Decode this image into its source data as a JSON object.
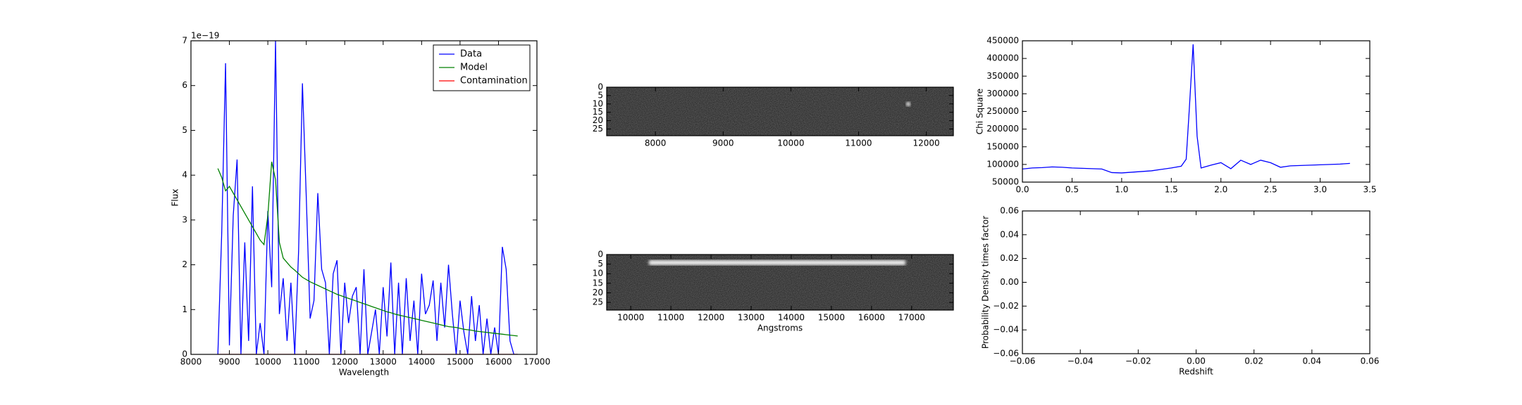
{
  "chart_data": [
    {
      "type": "line",
      "xlabel": "Wavelength",
      "ylabel": "Flux",
      "y_offset_label": "1e−19",
      "xlim": [
        8000,
        17000
      ],
      "xticks": [
        8000,
        9000,
        10000,
        11000,
        12000,
        13000,
        14000,
        15000,
        16000,
        17000
      ],
      "ylim": [
        0,
        7
      ],
      "yticks": [
        0,
        1,
        2,
        3,
        4,
        5,
        6,
        7
      ],
      "legend": "upper right",
      "x": [
        8700,
        8800,
        8900,
        9000,
        9100,
        9200,
        9300,
        9400,
        9500,
        9600,
        9700,
        9800,
        9900,
        10000,
        10100,
        10200,
        10300,
        10400,
        10500,
        10600,
        10700,
        10800,
        10900,
        11000,
        11100,
        11200,
        11300,
        11400,
        11500,
        11600,
        11700,
        11800,
        11900,
        12000,
        12100,
        12200,
        12300,
        12400,
        12500,
        12600,
        12700,
        12800,
        12900,
        13000,
        13100,
        13200,
        13300,
        13400,
        13500,
        13600,
        13700,
        13800,
        13900,
        14000,
        14100,
        14200,
        14300,
        14400,
        14500,
        14600,
        14700,
        14800,
        14900,
        15000,
        15100,
        15200,
        15300,
        15400,
        15500,
        15600,
        15700,
        15800,
        15900,
        16000,
        16100,
        16200,
        16300,
        16400,
        16500
      ],
      "series": [
        {
          "name": "Data",
          "color": "#0000ff",
          "values": [
            0,
            2.7,
            6.5,
            0.2,
            3.1,
            4.35,
            0,
            2.5,
            0.3,
            3.75,
            0,
            0.7,
            0,
            3.2,
            1.5,
            7.0,
            0.9,
            1.7,
            0.3,
            1.6,
            0,
            2.3,
            6.05,
            3.5,
            0.8,
            1.2,
            3.6,
            1.9,
            1.6,
            0,
            1.8,
            2.1,
            0,
            1.6,
            0.7,
            1.3,
            1.5,
            0,
            1.9,
            0,
            0.5,
            1.0,
            0,
            1.5,
            0.4,
            2.05,
            0,
            1.6,
            0,
            1.7,
            0.3,
            1.2,
            0,
            1.8,
            0.9,
            1.1,
            1.65,
            0.3,
            1.6,
            0.6,
            2.0,
            0.9,
            0,
            1.2,
            0.5,
            0,
            1.3,
            0.3,
            1.1,
            0,
            0.8,
            0,
            0.6,
            0,
            2.4,
            1.9,
            0.3,
            0,
            0
          ]
        },
        {
          "name": "Model",
          "color": "#008000",
          "values": [
            4.15,
            3.95,
            3.65,
            3.75,
            3.6,
            3.45,
            3.3,
            3.15,
            3.0,
            2.85,
            2.7,
            2.55,
            2.45,
            3.1,
            4.3,
            3.9,
            2.5,
            2.15,
            2.05,
            1.95,
            1.88,
            1.8,
            1.72,
            1.67,
            1.62,
            1.58,
            1.54,
            1.5,
            1.46,
            1.42,
            1.38,
            1.34,
            1.31,
            1.28,
            1.25,
            1.22,
            1.19,
            1.16,
            1.13,
            1.1,
            1.07,
            1.04,
            1.01,
            0.98,
            0.95,
            0.93,
            0.9,
            0.88,
            0.86,
            0.84,
            0.82,
            0.8,
            0.78,
            0.76,
            0.74,
            0.72,
            0.7,
            0.68,
            0.66,
            0.64,
            0.62,
            0.61,
            0.6,
            0.58,
            0.56,
            0.55,
            0.54,
            0.52,
            0.51,
            0.5,
            0.49,
            0.48,
            0.47,
            0.46,
            0.45,
            0.44,
            0.43,
            0.42,
            0.41
          ]
        },
        {
          "name": "Contamination",
          "color": "#ff0000",
          "values": [
            0,
            0,
            0,
            0,
            0,
            0,
            0,
            0,
            0,
            0,
            0,
            0,
            0,
            0,
            0,
            0,
            0,
            0,
            0,
            0,
            0,
            0,
            0,
            0,
            0,
            0,
            0,
            0,
            0,
            0,
            0,
            0,
            0,
            0,
            0,
            0,
            0,
            0,
            0,
            0,
            0,
            0,
            0,
            0,
            0,
            0,
            0,
            0,
            0,
            0,
            0,
            0,
            0,
            0,
            0,
            0,
            0,
            0,
            0,
            0,
            0,
            0,
            0,
            0,
            0,
            0,
            0,
            0,
            0,
            0,
            0,
            0,
            0,
            0,
            0,
            0,
            0,
            0,
            0
          ]
        }
      ]
    },
    {
      "type": "image",
      "xlim": [
        7280,
        12400
      ],
      "xticks": [
        8000,
        9000,
        10000,
        11000,
        12000
      ],
      "ylim": [
        0,
        29
      ],
      "yticks": [
        0,
        5,
        10,
        15,
        20,
        25
      ],
      "y_inverted": true
    },
    {
      "type": "image",
      "xlabel": "Angstroms",
      "xlim": [
        9400,
        18040
      ],
      "xticks": [
        10000,
        11000,
        12000,
        13000,
        14000,
        15000,
        16000,
        17000
      ],
      "ylim": [
        0,
        29
      ],
      "yticks": [
        0,
        5,
        10,
        15,
        20,
        25
      ],
      "y_inverted": true
    },
    {
      "type": "line",
      "ylabel": "Chi Square",
      "xlim": [
        0,
        3.5
      ],
      "xticks": [
        {
          "value": 0,
          "label": "0.0"
        },
        0.5,
        {
          "value": 1,
          "label": "1.0"
        },
        1.5,
        {
          "value": 2,
          "label": "2.0"
        },
        2.5,
        {
          "value": 3,
          "label": "3.0"
        },
        3.5
      ],
      "ylim": [
        50000,
        450000
      ],
      "yticks": [
        50000,
        100000,
        150000,
        200000,
        250000,
        300000,
        350000,
        400000,
        450000
      ],
      "x": [
        0,
        0.1,
        0.2,
        0.3,
        0.4,
        0.5,
        0.6,
        0.7,
        0.8,
        0.9,
        1.0,
        1.1,
        1.2,
        1.3,
        1.4,
        1.5,
        1.6,
        1.65,
        1.68,
        1.72,
        1.76,
        1.8,
        1.9,
        2.0,
        2.1,
        2.2,
        2.3,
        2.4,
        2.5,
        2.6,
        2.7,
        2.8,
        2.9,
        3.0,
        3.1,
        3.2,
        3.3
      ],
      "series": [
        {
          "color": "#0000ff",
          "values": [
            87000,
            90000,
            91000,
            93000,
            92000,
            90000,
            89000,
            88000,
            87000,
            77000,
            76000,
            78000,
            80000,
            82000,
            86000,
            90000,
            95000,
            115000,
            250000,
            440000,
            180000,
            90000,
            98000,
            105000,
            88000,
            112000,
            100000,
            112000,
            105000,
            92000,
            96000,
            97000,
            98000,
            99000,
            100000,
            101000,
            103000
          ]
        }
      ]
    },
    {
      "type": "line",
      "xlabel": "Redshift",
      "ylabel": "Probability Density times factor",
      "xlim": [
        -0.06,
        0.06
      ],
      "xticks": [
        {
          "value": -0.06,
          "label": "−0.06"
        },
        {
          "value": -0.04,
          "label": "−0.04"
        },
        {
          "value": -0.02,
          "label": "−0.02"
        },
        {
          "value": 0,
          "label": "0.00"
        },
        0.02,
        0.04,
        0.06
      ],
      "ylim": [
        -0.06,
        0.06
      ],
      "yticks": [
        {
          "value": -0.06,
          "label": "−0.06"
        },
        {
          "value": -0.04,
          "label": "−0.04"
        },
        {
          "value": -0.02,
          "label": "−0.02"
        },
        {
          "value": 0,
          "label": "0.00"
        },
        0.02,
        0.04,
        0.06
      ],
      "series": []
    }
  ]
}
